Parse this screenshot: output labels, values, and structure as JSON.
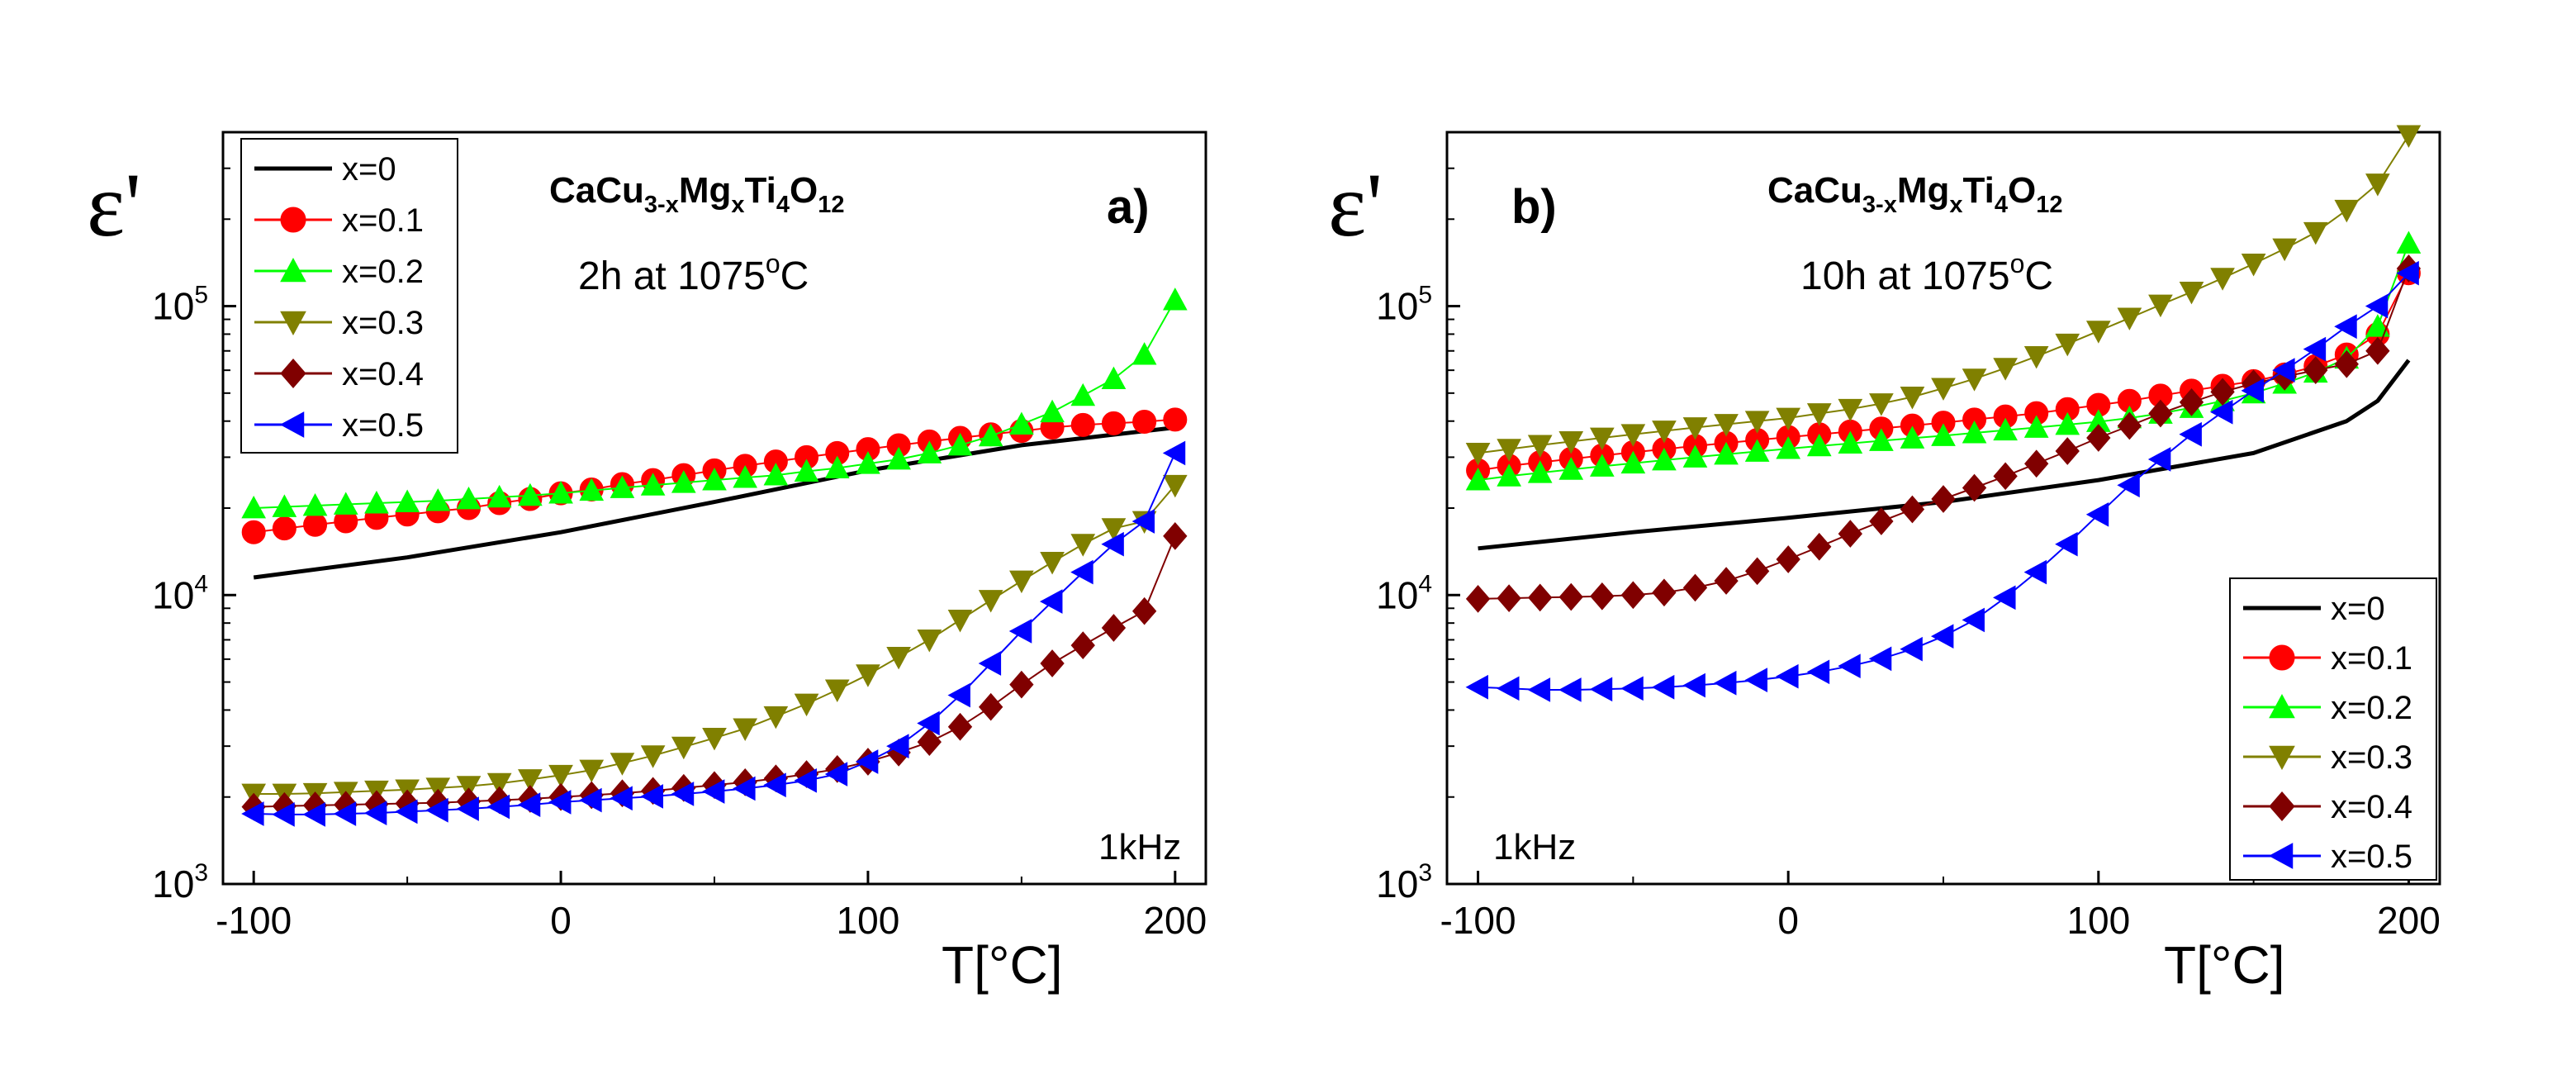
{
  "figure": {
    "ylabel_symbol": "ε'",
    "xlabel": "T[°C]",
    "frequency_label": "1kHz",
    "series_styles": [
      {
        "name": "x=0",
        "color": "#000000",
        "marker": "none"
      },
      {
        "name": "x=0.1",
        "color": "#ff0000",
        "marker": "circle"
      },
      {
        "name": "x=0.2",
        "color": "#00ff00",
        "marker": "triangle-up"
      },
      {
        "name": "x=0.3",
        "color": "#808000",
        "marker": "triangle-down"
      },
      {
        "name": "x=0.4",
        "color": "#800000",
        "marker": "diamond"
      },
      {
        "name": "x=0.5",
        "color": "#0000ff",
        "marker": "triangle-left"
      }
    ]
  },
  "chart_data": [
    {
      "type": "line",
      "panel": "a)",
      "title": "CaCu3-xMgxTi4O12",
      "title_base": "CaCu",
      "title_sub1": "3-x",
      "title_mid": "Mg",
      "title_sub2": "x",
      "title_mid2": "Ti",
      "title_sub3": "4",
      "title_mid3": "O",
      "title_sub4": "12",
      "subtitle": "2h at 1075°C",
      "subtitle_pre": "2h at 1075",
      "subtitle_sup": "o",
      "subtitle_post": "C",
      "annotation": "1kHz",
      "xlabel": "T[°C]",
      "ylabel": "ε'",
      "yscale": "log",
      "xlim": [
        -110,
        210
      ],
      "ylim": [
        1000,
        400000
      ],
      "xticks": [
        -100,
        0,
        100,
        200
      ],
      "yticks": [
        {
          "value": 1000,
          "exp": "3"
        },
        {
          "value": 10000,
          "exp": "4"
        },
        {
          "value": 100000,
          "exp": "5"
        }
      ],
      "legend_position": "top-left",
      "series": [
        {
          "name": "x=0",
          "x": [
            -100,
            -50,
            0,
            50,
            100,
            150,
            200
          ],
          "y": [
            11500,
            13500,
            16500,
            21000,
            27000,
            33000,
            38000
          ]
        },
        {
          "name": "x=0.1",
          "x": [
            -100,
            -90,
            -80,
            -70,
            -60,
            -50,
            -40,
            -30,
            -20,
            -10,
            0,
            10,
            20,
            30,
            40,
            50,
            60,
            70,
            80,
            90,
            100,
            110,
            120,
            130,
            140,
            150,
            160,
            170,
            180,
            190,
            200
          ],
          "y": [
            16500,
            17000,
            17500,
            18000,
            18500,
            19000,
            19500,
            20000,
            20800,
            21500,
            22500,
            23200,
            24200,
            25000,
            26000,
            27000,
            28000,
            29000,
            30000,
            31000,
            32000,
            33000,
            34000,
            35000,
            36000,
            37000,
            38000,
            38800,
            39300,
            39800,
            40500
          ]
        },
        {
          "name": "x=0.2",
          "x": [
            -100,
            -90,
            -80,
            -70,
            -60,
            -50,
            -40,
            -30,
            -20,
            -10,
            0,
            10,
            20,
            30,
            40,
            50,
            60,
            70,
            80,
            90,
            100,
            110,
            120,
            130,
            140,
            150,
            160,
            170,
            180,
            190,
            200
          ],
          "y": [
            20000,
            20200,
            20400,
            20600,
            20800,
            21000,
            21200,
            21500,
            21800,
            22100,
            22500,
            23000,
            23500,
            24000,
            24500,
            25000,
            25500,
            26000,
            26800,
            27500,
            28500,
            29500,
            31000,
            33000,
            35500,
            39000,
            43000,
            49000,
            56000,
            68000,
            105000
          ]
        },
        {
          "name": "x=0.3",
          "x": [
            -100,
            -90,
            -80,
            -70,
            -60,
            -50,
            -40,
            -30,
            -20,
            -10,
            0,
            10,
            20,
            30,
            40,
            50,
            60,
            70,
            80,
            90,
            100,
            110,
            120,
            130,
            140,
            150,
            160,
            170,
            180,
            190,
            200
          ],
          "y": [
            2050,
            2050,
            2060,
            2080,
            2100,
            2120,
            2150,
            2180,
            2230,
            2300,
            2380,
            2480,
            2620,
            2780,
            2980,
            3200,
            3450,
            3800,
            4200,
            4700,
            5300,
            6100,
            7000,
            8200,
            9600,
            11200,
            13000,
            15000,
            17000,
            18000,
            24000
          ]
        },
        {
          "name": "x=0.4",
          "x": [
            -100,
            -90,
            -80,
            -70,
            -60,
            -50,
            -40,
            -30,
            -20,
            -10,
            0,
            10,
            20,
            30,
            40,
            50,
            60,
            70,
            80,
            90,
            100,
            110,
            120,
            130,
            140,
            150,
            160,
            170,
            180,
            190,
            200
          ],
          "y": [
            1850,
            1860,
            1870,
            1880,
            1890,
            1900,
            1910,
            1930,
            1950,
            1970,
            2000,
            2030,
            2060,
            2100,
            2150,
            2200,
            2250,
            2320,
            2400,
            2500,
            2650,
            2850,
            3100,
            3500,
            4100,
            4900,
            5800,
            6700,
            7700,
            8800,
            16000
          ]
        },
        {
          "name": "x=0.5",
          "x": [
            -100,
            -90,
            -80,
            -70,
            -60,
            -50,
            -40,
            -30,
            -20,
            -10,
            0,
            10,
            20,
            30,
            40,
            50,
            60,
            70,
            80,
            90,
            100,
            110,
            120,
            130,
            140,
            150,
            160,
            170,
            180,
            190,
            200
          ],
          "y": [
            1750,
            1740,
            1740,
            1750,
            1760,
            1780,
            1800,
            1820,
            1850,
            1880,
            1920,
            1950,
            1980,
            2010,
            2050,
            2090,
            2140,
            2200,
            2280,
            2400,
            2650,
            3000,
            3600,
            4500,
            5800,
            7500,
            9500,
            12000,
            15000,
            18000,
            31000
          ]
        }
      ]
    },
    {
      "type": "line",
      "panel": "b)",
      "title": "CaCu3-xMgxTi4O12",
      "title_base": "CaCu",
      "title_sub1": "3-x",
      "title_mid": "Mg",
      "title_sub2": "x",
      "title_mid2": "Ti",
      "title_sub3": "4",
      "title_mid3": "O",
      "title_sub4": "12",
      "subtitle": "10h at 1075°C",
      "subtitle_pre": "10h at 1075",
      "subtitle_sup": "o",
      "subtitle_post": "C",
      "annotation": "1kHz",
      "xlabel": "T[°C]",
      "ylabel": "ε'",
      "yscale": "log",
      "xlim": [
        -110,
        210
      ],
      "ylim": [
        1000,
        400000
      ],
      "xticks": [
        -100,
        0,
        100,
        200
      ],
      "yticks": [
        {
          "value": 1000,
          "exp": "3"
        },
        {
          "value": 10000,
          "exp": "4"
        },
        {
          "value": 100000,
          "exp": "5"
        }
      ],
      "legend_position": "bottom-right",
      "series": [
        {
          "name": "x=0",
          "x": [
            -100,
            -50,
            0,
            50,
            100,
            150,
            180,
            190,
            200
          ],
          "y": [
            14500,
            16500,
            18500,
            21000,
            25000,
            31000,
            40000,
            47000,
            65000
          ]
        },
        {
          "name": "x=0.1",
          "x": [
            -100,
            -90,
            -80,
            -70,
            -60,
            -50,
            -40,
            -30,
            -20,
            -10,
            0,
            10,
            20,
            30,
            40,
            50,
            60,
            70,
            80,
            90,
            100,
            110,
            120,
            130,
            140,
            150,
            160,
            170,
            180,
            190,
            200
          ],
          "y": [
            27000,
            28000,
            28800,
            29600,
            30400,
            31200,
            32000,
            32800,
            33600,
            34400,
            35200,
            36000,
            36800,
            37700,
            38600,
            39500,
            40500,
            41500,
            42600,
            44000,
            45500,
            47000,
            49000,
            51000,
            53000,
            55000,
            58000,
            62000,
            68000,
            80000,
            130000
          ]
        },
        {
          "name": "x=0.2",
          "x": [
            -100,
            -90,
            -80,
            -70,
            -60,
            -50,
            -40,
            -30,
            -20,
            -10,
            0,
            10,
            20,
            30,
            40,
            50,
            60,
            70,
            80,
            90,
            100,
            110,
            120,
            130,
            140,
            150,
            160,
            170,
            180,
            190,
            200
          ],
          "y": [
            25000,
            25800,
            26500,
            27200,
            27900,
            28600,
            29300,
            30000,
            30700,
            31400,
            32100,
            32800,
            33500,
            34200,
            34900,
            35600,
            36400,
            37200,
            38000,
            38900,
            39800,
            41000,
            42500,
            44500,
            47000,
            50000,
            54000,
            59000,
            66000,
            85000,
            165000
          ]
        },
        {
          "name": "x=0.3",
          "x": [
            -100,
            -90,
            -80,
            -70,
            -60,
            -50,
            -40,
            -30,
            -20,
            -10,
            0,
            10,
            20,
            30,
            40,
            50,
            60,
            70,
            80,
            90,
            100,
            110,
            120,
            130,
            140,
            150,
            160,
            170,
            180,
            190,
            200
          ],
          "y": [
            31000,
            32000,
            33000,
            34000,
            35000,
            36000,
            37000,
            38000,
            39000,
            40000,
            41000,
            42500,
            44000,
            46000,
            48500,
            52000,
            56000,
            61000,
            67000,
            74000,
            82000,
            91000,
            101000,
            112000,
            125000,
            140000,
            158000,
            180000,
            215000,
            265000,
            390000
          ]
        },
        {
          "name": "x=0.4",
          "x": [
            -100,
            -90,
            -80,
            -70,
            -60,
            -50,
            -40,
            -30,
            -20,
            -10,
            0,
            10,
            20,
            30,
            40,
            50,
            60,
            70,
            80,
            90,
            100,
            110,
            120,
            130,
            140,
            150,
            160,
            170,
            180,
            190,
            200
          ],
          "y": [
            9700,
            9750,
            9800,
            9850,
            9900,
            10000,
            10200,
            10600,
            11200,
            12100,
            13300,
            14700,
            16300,
            18000,
            19800,
            21500,
            23500,
            25800,
            28500,
            31500,
            35000,
            38500,
            42500,
            46500,
            50500,
            54000,
            57000,
            60000,
            63000,
            70000,
            135000
          ]
        },
        {
          "name": "x=0.5",
          "x": [
            -100,
            -90,
            -80,
            -70,
            -60,
            -50,
            -40,
            -30,
            -20,
            -10,
            0,
            10,
            20,
            30,
            40,
            50,
            60,
            70,
            80,
            90,
            100,
            110,
            120,
            130,
            140,
            150,
            160,
            170,
            180,
            190,
            200
          ],
          "y": [
            4800,
            4750,
            4700,
            4700,
            4720,
            4750,
            4800,
            4870,
            4960,
            5080,
            5230,
            5420,
            5680,
            6020,
            6500,
            7200,
            8200,
            9800,
            12000,
            15000,
            19000,
            24000,
            29500,
            36000,
            43000,
            51000,
            60000,
            71000,
            85000,
            100000,
            130000
          ]
        }
      ]
    }
  ]
}
